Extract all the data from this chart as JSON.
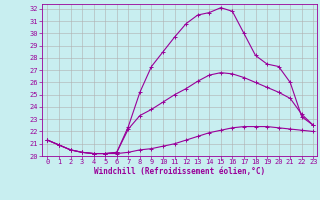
{
  "xlabel": "Windchill (Refroidissement éolien,°C)",
  "bg_color": "#c8eef0",
  "line_color": "#990099",
  "grid_color": "#b0b0b0",
  "xlim": [
    -0.5,
    23.3
  ],
  "ylim": [
    20.0,
    32.4
  ],
  "yticks": [
    20,
    21,
    22,
    23,
    24,
    25,
    26,
    27,
    28,
    29,
    30,
    31,
    32
  ],
  "xticks": [
    0,
    1,
    2,
    3,
    4,
    5,
    6,
    7,
    8,
    9,
    10,
    11,
    12,
    13,
    14,
    15,
    16,
    17,
    18,
    19,
    20,
    21,
    22,
    23
  ],
  "line1_x": [
    0,
    1,
    2,
    3,
    4,
    5,
    6,
    7,
    8,
    9,
    10,
    11,
    12,
    13,
    14,
    15,
    16,
    17,
    18,
    19,
    20,
    21,
    22,
    23
  ],
  "line1_y": [
    21.3,
    20.9,
    20.5,
    20.3,
    20.2,
    20.2,
    20.2,
    20.3,
    20.5,
    20.6,
    20.8,
    21.0,
    21.3,
    21.6,
    21.9,
    22.1,
    22.3,
    22.4,
    22.4,
    22.4,
    22.3,
    22.2,
    22.1,
    22.0
  ],
  "line2_x": [
    0,
    1,
    2,
    3,
    4,
    5,
    6,
    7,
    8,
    9,
    10,
    11,
    12,
    13,
    14,
    15,
    16,
    17,
    18,
    19,
    20,
    21,
    22,
    23
  ],
  "line2_y": [
    21.3,
    20.9,
    20.5,
    20.3,
    20.2,
    20.2,
    20.3,
    22.2,
    23.3,
    23.8,
    24.4,
    25.0,
    25.5,
    26.1,
    26.6,
    26.8,
    26.7,
    26.4,
    26.0,
    25.6,
    25.2,
    24.7,
    23.4,
    22.5
  ],
  "line3_x": [
    0,
    1,
    2,
    3,
    4,
    5,
    6,
    7,
    8,
    9,
    10,
    11,
    12,
    13,
    14,
    15,
    16,
    17,
    18,
    19,
    20,
    21,
    22,
    23
  ],
  "line3_y": [
    21.3,
    20.9,
    20.5,
    20.3,
    20.2,
    20.2,
    20.3,
    22.4,
    25.2,
    27.3,
    28.5,
    29.7,
    30.8,
    31.5,
    31.7,
    32.1,
    31.8,
    30.0,
    28.2,
    27.5,
    27.3,
    26.0,
    23.2,
    22.5
  ]
}
